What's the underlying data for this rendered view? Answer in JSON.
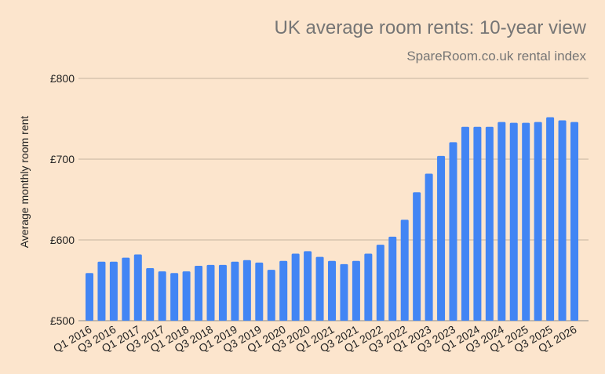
{
  "chart_data": {
    "type": "bar",
    "title": "UK average room rents: 10-year view",
    "subtitle": "SpareRoom.co.uk rental index",
    "xlabel": "",
    "ylabel": "Average monthly room rent",
    "ylim": [
      500,
      800
    ],
    "yticks": [
      500,
      600,
      700,
      800
    ],
    "ytick_labels": [
      "£500",
      "£600",
      "£700",
      "£800"
    ],
    "grid": true,
    "bar_color": "#4285f4",
    "categories": [
      "Q1 2016",
      "Q2 2016",
      "Q3 2016",
      "Q4 2016",
      "Q1 2017",
      "Q2 2017",
      "Q3 2017",
      "Q4 2017",
      "Q1 2018",
      "Q2 2018",
      "Q3 2018",
      "Q4 2018",
      "Q1 2019",
      "Q2 2019",
      "Q3 2019",
      "Q4 2019",
      "Q1 2020",
      "Q2 2020",
      "Q3 2020",
      "Q4 2020",
      "Q1 2021",
      "Q2 2021",
      "Q3 2021",
      "Q4 2021",
      "Q1 2022",
      "Q2 2022",
      "Q3 2022",
      "Q4 2022",
      "Q1 2023",
      "Q2 2023",
      "Q3 2023",
      "Q4 2023",
      "Q1 2024",
      "Q2 2024",
      "Q3 2024",
      "Q4 2024",
      "Q1 2025",
      "Q2 2025",
      "Q3 2025",
      "Q4 2025",
      "Q1 2026"
    ],
    "values": [
      559,
      573,
      573,
      578,
      582,
      565,
      561,
      559,
      561,
      568,
      569,
      569,
      573,
      575,
      572,
      563,
      574,
      583,
      586,
      579,
      574,
      570,
      574,
      583,
      594,
      604,
      625,
      659,
      682,
      704,
      721,
      740,
      740,
      740,
      746,
      745,
      745,
      746,
      752,
      748,
      746
    ],
    "xtick_labels": [
      "Q1 2016",
      "Q3 2016",
      "Q1 2017",
      "Q3 2017",
      "Q1 2018",
      "Q3 2018",
      "Q1 2019",
      "Q3 2019",
      "Q1 2020",
      "Q3 2020",
      "Q1 2021",
      "Q3 2021",
      "Q1 2022",
      "Q3 2022",
      "Q1 2023",
      "Q3 2023",
      "Q1 2024",
      "Q3 2024",
      "Q1 2025",
      "Q3 2025",
      "Q1 2026"
    ]
  }
}
